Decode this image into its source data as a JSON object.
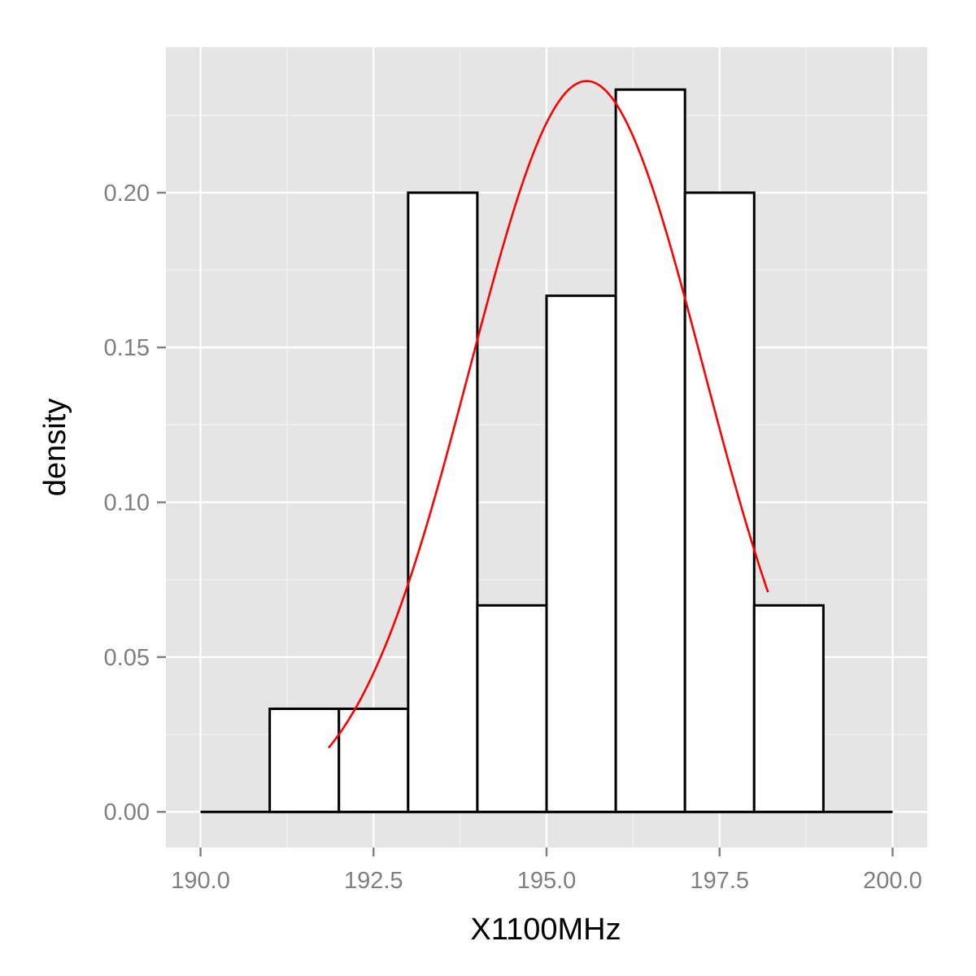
{
  "chart_data": {
    "type": "bar",
    "subtype": "histogram",
    "title": "",
    "xlabel": "X1100MHz",
    "ylabel": "density",
    "xlim": [
      189.5,
      200.5
    ],
    "ylim": [
      -0.0115,
      0.247
    ],
    "x_ticks": [
      190.0,
      192.5,
      195.0,
      197.5,
      200.0
    ],
    "x_tick_labels": [
      "190.0",
      "192.5",
      "195.0",
      "197.5",
      "200.0"
    ],
    "y_ticks": [
      0.0,
      0.05,
      0.1,
      0.15,
      0.2
    ],
    "y_tick_labels": [
      "0.00",
      "0.05",
      "0.10",
      "0.15",
      "0.20"
    ],
    "baseline_range": [
      190,
      200
    ],
    "bins": [
      {
        "x0": 191,
        "x1": 192,
        "density": 0.0333
      },
      {
        "x0": 192,
        "x1": 193,
        "density": 0.0333
      },
      {
        "x0": 193,
        "x1": 194,
        "density": 0.2
      },
      {
        "x0": 194,
        "x1": 195,
        "density": 0.0667
      },
      {
        "x0": 195,
        "x1": 196,
        "density": 0.1667
      },
      {
        "x0": 196,
        "x1": 197,
        "density": 0.2333
      },
      {
        "x0": 197,
        "x1": 198,
        "density": 0.2
      },
      {
        "x0": 198,
        "x1": 199,
        "density": 0.0667
      }
    ],
    "density_curve": {
      "color": "#ff0000",
      "x_range": [
        191.85,
        198.2
      ],
      "mean": 195.58,
      "sd": 1.69
    },
    "panel_background": "#e5e5e5",
    "grid": true,
    "legend": "none"
  }
}
